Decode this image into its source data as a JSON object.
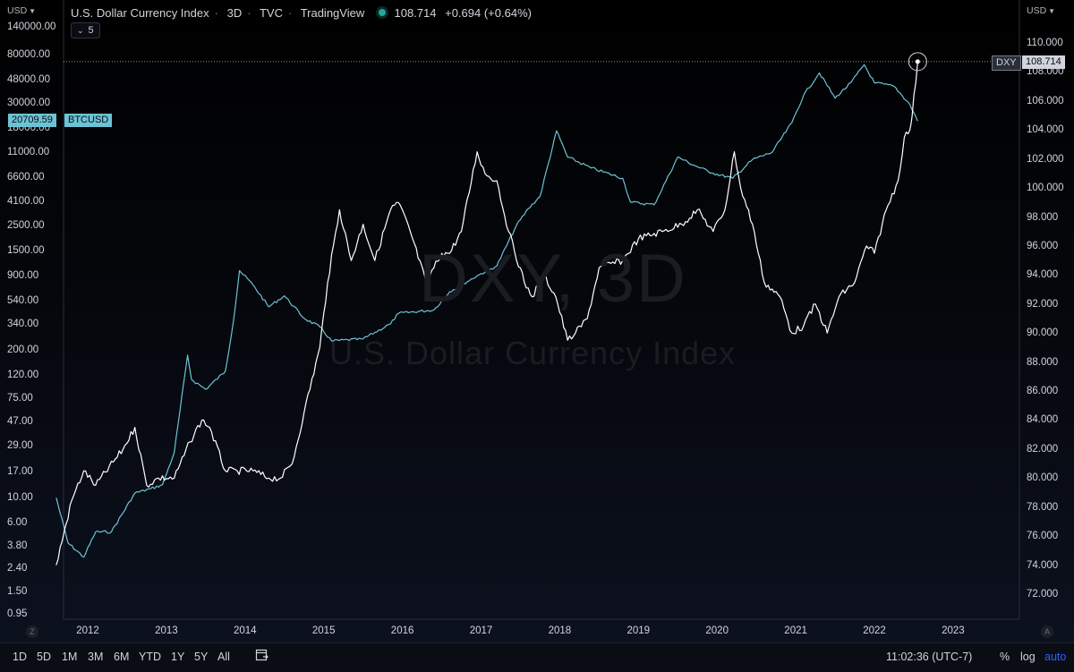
{
  "header": {
    "title": "U.S. Dollar Currency Index",
    "interval": "3D",
    "source": "TVC",
    "publisher": "TradingView",
    "last_value": "108.714",
    "change": "+0.694 (+0.64%)",
    "collapse_count": "5"
  },
  "watermark": {
    "symbol": "DXY, 3D",
    "name": "U.S. Dollar Currency Index"
  },
  "left_scale": {
    "unit": "USD",
    "value_tag": "20709.59",
    "symbol_tag": "BTCUSD"
  },
  "right_scale": {
    "unit": "USD",
    "symbol_tag": "DXY",
    "value_tag": "108.714"
  },
  "toolbar": {
    "ranges": [
      "1D",
      "5D",
      "1M",
      "3M",
      "6M",
      "YTD",
      "1Y",
      "5Y",
      "All"
    ],
    "time_display": "11:02:36 (UTC-7)",
    "percent_label": "%",
    "log_label": "log",
    "auto_label": "auto",
    "left_corner": "Z",
    "right_corner": "A"
  },
  "colors": {
    "btc": "#6cc3d5",
    "dxy": "#ffffff",
    "accent": "#26a69a",
    "background": "#000000"
  },
  "icons": {
    "calendar": "calendar-range-icon",
    "settings": "gear-icon"
  },
  "chart_data": {
    "type": "line",
    "x_ticks": [
      "2012",
      "2013",
      "2014",
      "2015",
      "2016",
      "2017",
      "2018",
      "2019",
      "2020",
      "2021",
      "2022",
      "2023"
    ],
    "left_axis": {
      "unit": "USD",
      "scale": "log",
      "ticks": [
        "140000.00",
        "80000.00",
        "48000.00",
        "30000.00",
        "18000.00",
        "11000.00",
        "6600.00",
        "4100.00",
        "2500.00",
        "1500.00",
        "900.00",
        "540.00",
        "340.00",
        "200.00",
        "120.00",
        "75.00",
        "47.00",
        "29.00",
        "17.00",
        "10.00",
        "6.00",
        "3.80",
        "2.40",
        "1.50",
        "0.95"
      ]
    },
    "right_axis": {
      "unit": "USD",
      "scale": "linear",
      "ticks": [
        "110.000",
        "108.000",
        "106.000",
        "104.000",
        "102.000",
        "100.000",
        "98.000",
        "96.000",
        "94.000",
        "92.000",
        "90.000",
        "88.000",
        "86.000",
        "84.000",
        "82.000",
        "80.000",
        "78.000",
        "76.000",
        "74.000",
        "72.000"
      ]
    },
    "series": [
      {
        "name": "BTCUSD",
        "axis": "left",
        "points": [
          [
            2011.6,
            10
          ],
          [
            2011.75,
            4
          ],
          [
            2011.95,
            3
          ],
          [
            2012.1,
            5
          ],
          [
            2012.3,
            5
          ],
          [
            2012.6,
            11
          ],
          [
            2012.8,
            12
          ],
          [
            2012.95,
            13
          ],
          [
            2013.1,
            25
          ],
          [
            2013.27,
            180
          ],
          [
            2013.32,
            110
          ],
          [
            2013.5,
            90
          ],
          [
            2013.75,
            130
          ],
          [
            2013.85,
            350
          ],
          [
            2013.93,
            1000
          ],
          [
            2014.1,
            750
          ],
          [
            2014.3,
            480
          ],
          [
            2014.5,
            600
          ],
          [
            2014.75,
            380
          ],
          [
            2014.95,
            320
          ],
          [
            2015.1,
            240
          ],
          [
            2015.5,
            250
          ],
          [
            2015.85,
            340
          ],
          [
            2015.95,
            420
          ],
          [
            2016.4,
            450
          ],
          [
            2016.6,
            650
          ],
          [
            2016.95,
            900
          ],
          [
            2017.2,
            1100
          ],
          [
            2017.45,
            2500
          ],
          [
            2017.6,
            3500
          ],
          [
            2017.75,
            4500
          ],
          [
            2017.96,
            17000
          ],
          [
            2018.1,
            10000
          ],
          [
            2018.4,
            8000
          ],
          [
            2018.8,
            6500
          ],
          [
            2018.9,
            4000
          ],
          [
            2019.2,
            3800
          ],
          [
            2019.5,
            10000
          ],
          [
            2019.7,
            8500
          ],
          [
            2019.95,
            7200
          ],
          [
            2020.2,
            6500
          ],
          [
            2020.45,
            9500
          ],
          [
            2020.7,
            11000
          ],
          [
            2020.95,
            20000
          ],
          [
            2021.1,
            35000
          ],
          [
            2021.3,
            55000
          ],
          [
            2021.5,
            33000
          ],
          [
            2021.7,
            45000
          ],
          [
            2021.87,
            65000
          ],
          [
            2022.0,
            45000
          ],
          [
            2022.25,
            42000
          ],
          [
            2022.45,
            29000
          ],
          [
            2022.55,
            20709.59
          ]
        ]
      },
      {
        "name": "DXY",
        "axis": "right",
        "points": [
          [
            2011.6,
            74
          ],
          [
            2011.8,
            78.5
          ],
          [
            2011.95,
            80.5
          ],
          [
            2012.1,
            79.5
          ],
          [
            2012.45,
            82
          ],
          [
            2012.6,
            83.5
          ],
          [
            2012.75,
            79.5
          ],
          [
            2012.9,
            80
          ],
          [
            2013.1,
            80
          ],
          [
            2013.3,
            82.5
          ],
          [
            2013.45,
            84
          ],
          [
            2013.55,
            83.5
          ],
          [
            2013.75,
            80.5
          ],
          [
            2013.9,
            80.5
          ],
          [
            2014.1,
            80.5
          ],
          [
            2014.3,
            80
          ],
          [
            2014.45,
            80
          ],
          [
            2014.6,
            81
          ],
          [
            2014.75,
            84.5
          ],
          [
            2014.95,
            89
          ],
          [
            2015.05,
            93.5
          ],
          [
            2015.2,
            98.5
          ],
          [
            2015.35,
            95
          ],
          [
            2015.5,
            97.5
          ],
          [
            2015.65,
            95
          ],
          [
            2015.85,
            98.5
          ],
          [
            2015.95,
            99
          ],
          [
            2016.1,
            97
          ],
          [
            2016.3,
            93.5
          ],
          [
            2016.5,
            95.5
          ],
          [
            2016.6,
            95.5
          ],
          [
            2016.75,
            97
          ],
          [
            2016.95,
            102.5
          ],
          [
            2017.05,
            101
          ],
          [
            2017.2,
            100.5
          ],
          [
            2017.35,
            97
          ],
          [
            2017.55,
            93.5
          ],
          [
            2017.65,
            92.5
          ],
          [
            2017.8,
            94
          ],
          [
            2017.95,
            92.5
          ],
          [
            2018.1,
            89.5
          ],
          [
            2018.2,
            90
          ],
          [
            2018.35,
            91
          ],
          [
            2018.5,
            94.5
          ],
          [
            2018.8,
            95
          ],
          [
            2019.0,
            96.5
          ],
          [
            2019.3,
            97
          ],
          [
            2019.55,
            97.5
          ],
          [
            2019.75,
            98.5
          ],
          [
            2019.95,
            97
          ],
          [
            2020.1,
            98.5
          ],
          [
            2020.22,
            102.5
          ],
          [
            2020.3,
            100
          ],
          [
            2020.45,
            97.5
          ],
          [
            2020.6,
            93.5
          ],
          [
            2020.8,
            92.5
          ],
          [
            2020.95,
            90
          ],
          [
            2021.1,
            90.5
          ],
          [
            2021.25,
            92
          ],
          [
            2021.4,
            90
          ],
          [
            2021.55,
            92.5
          ],
          [
            2021.75,
            93.5
          ],
          [
            2021.9,
            96
          ],
          [
            2022.0,
            95.5
          ],
          [
            2022.15,
            98.5
          ],
          [
            2022.3,
            100.5
          ],
          [
            2022.38,
            103.5
          ],
          [
            2022.45,
            104
          ],
          [
            2022.48,
            105
          ],
          [
            2022.55,
            108.714
          ]
        ]
      }
    ]
  }
}
